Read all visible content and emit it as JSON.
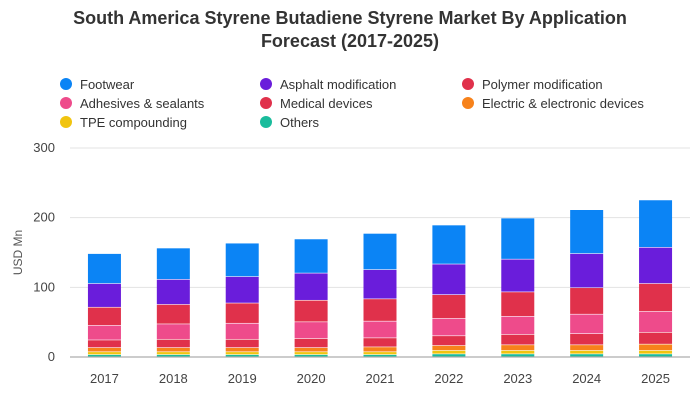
{
  "chart_data": {
    "type": "bar",
    "stacked": true,
    "title": "South America Styrene Butadiene Styrene Market By Application Forecast (2017-2025)",
    "title_lines": [
      "South America Styrene Butadiene Styrene Market By Application",
      "Forecast (2017-2025)"
    ],
    "xlabel": "",
    "ylabel": "USD Mn",
    "ylim": [
      0,
      300
    ],
    "yticks": [
      "0",
      "100",
      "200",
      "300"
    ],
    "grid": true,
    "legend_position": "top",
    "categories": [
      "2017",
      "2018",
      "2019",
      "2020",
      "2021",
      "2022",
      "2023",
      "2024",
      "2025"
    ],
    "series": [
      {
        "name": "Others",
        "color": "#1abc9c",
        "values": [
          3,
          3,
          3,
          3,
          3,
          4,
          4,
          4,
          4
        ]
      },
      {
        "name": "TPE compounding",
        "color": "#f1c40f",
        "values": [
          4,
          4,
          4,
          4,
          4,
          5,
          5,
          5,
          5
        ]
      },
      {
        "name": "Electric & electronic devices",
        "color": "#f7821b",
        "values": [
          6,
          6,
          6,
          6,
          7,
          7,
          8,
          8,
          9
        ]
      },
      {
        "name": "Medical devices",
        "color": "#e0314b",
        "values": [
          11,
          12,
          12,
          13,
          13,
          14,
          15,
          16,
          17
        ]
      },
      {
        "name": "Adhesives & sealants",
        "color": "#ee4b8b",
        "values": [
          21,
          22,
          23,
          24,
          24,
          25,
          26,
          28,
          30
        ]
      },
      {
        "name": "Polymer modification",
        "color": "#e0314b",
        "values": [
          26,
          28,
          29,
          31,
          32,
          34,
          35,
          38,
          40
        ]
      },
      {
        "name": "Asphalt modification",
        "color": "#6a1ddb",
        "values": [
          34,
          36,
          38,
          39,
          42,
          44,
          47,
          49,
          52
        ]
      },
      {
        "name": "Footwear",
        "color": "#0b84f5",
        "values": [
          43,
          45,
          48,
          49,
          52,
          56,
          59,
          63,
          68
        ]
      }
    ],
    "legend": [
      {
        "name": "Footwear",
        "color": "#0b84f5"
      },
      {
        "name": "Asphalt modification",
        "color": "#6a1ddb"
      },
      {
        "name": "Polymer modification",
        "color": "#e0314b"
      },
      {
        "name": "Adhesives & sealants",
        "color": "#ee4b8b"
      },
      {
        "name": "Medical devices",
        "color": "#e0314b"
      },
      {
        "name": "Electric & electronic devices",
        "color": "#f7821b"
      },
      {
        "name": "TPE compounding",
        "color": "#f1c40f"
      },
      {
        "name": "Others",
        "color": "#1abc9c"
      }
    ]
  }
}
